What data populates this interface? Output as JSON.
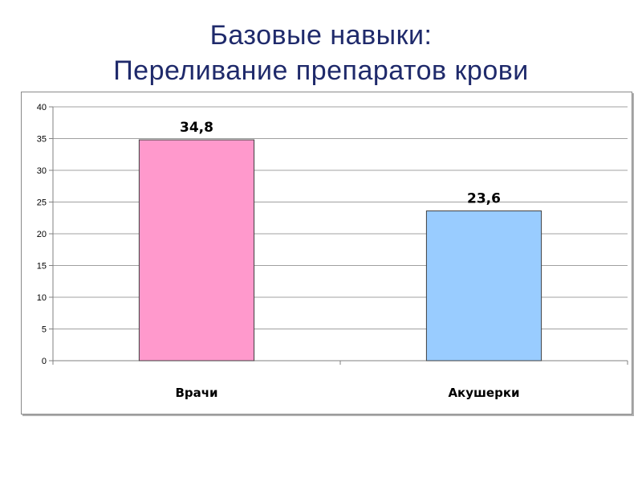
{
  "title": {
    "line1": "Базовые навыки:",
    "line2": "Переливание препаратов крови"
  },
  "chart_data": {
    "type": "bar",
    "categories": [
      "Врачи",
      "Акушерки"
    ],
    "values": [
      34.8,
      23.6
    ],
    "data_labels": [
      "34,8",
      "23,6"
    ],
    "bar_colors": [
      "#ff99cc",
      "#99ccff"
    ],
    "ylim": [
      0,
      40
    ],
    "yticks": [
      0,
      5,
      10,
      15,
      20,
      25,
      30,
      35,
      40
    ],
    "grid": true,
    "legend": "none",
    "xlabel": "",
    "ylabel": ""
  }
}
